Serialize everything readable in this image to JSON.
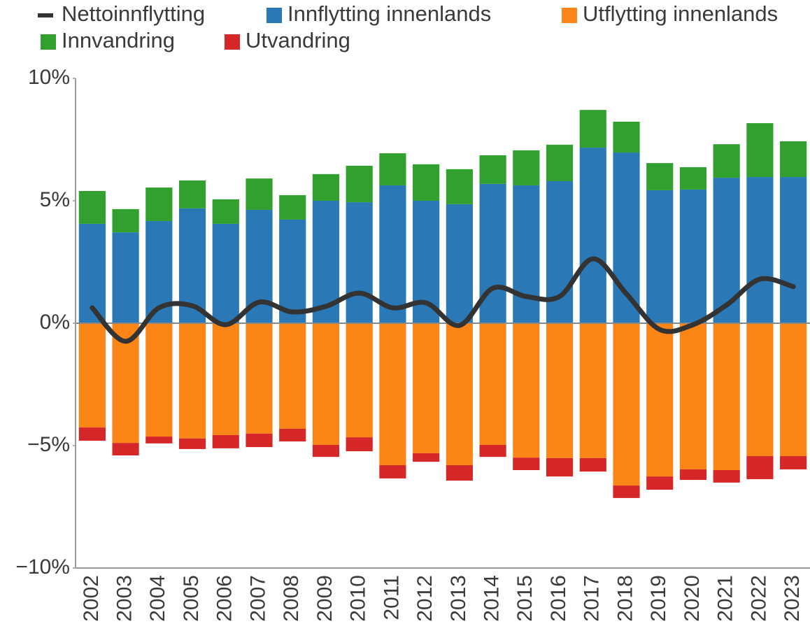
{
  "chart_data": {
    "type": "bar",
    "categories": [
      "2002",
      "2003",
      "2004",
      "2005",
      "2006",
      "2007",
      "2008",
      "2009",
      "2010",
      "2011",
      "2012",
      "2013",
      "2014",
      "2015",
      "2016",
      "2017",
      "2018",
      "2019",
      "2020",
      "2021",
      "2022",
      "2023"
    ],
    "series": [
      {
        "name": "Nettoinnflytting",
        "type": "line",
        "color": "#333333",
        "values": [
          0.63,
          -0.74,
          0.63,
          0.71,
          -0.06,
          0.86,
          0.46,
          0.69,
          1.23,
          0.63,
          0.83,
          -0.09,
          1.43,
          1.09,
          1.09,
          2.63,
          1.2,
          -0.26,
          -0.06,
          0.74,
          1.8,
          1.49
        ]
      },
      {
        "name": "Innflytting innenlands",
        "color": "#2a78b5",
        "values": [
          4.06,
          3.71,
          4.17,
          4.69,
          4.06,
          4.63,
          4.23,
          5.0,
          4.94,
          5.63,
          5.0,
          4.86,
          5.69,
          5.63,
          5.8,
          7.17,
          6.97,
          5.43,
          5.46,
          5.94,
          5.97,
          5.97
        ]
      },
      {
        "name": "Utflytting innenlands",
        "color": "#fb8517",
        "values": [
          -4.26,
          -4.89,
          -4.63,
          -4.71,
          -4.57,
          -4.51,
          -4.31,
          -4.97,
          -4.66,
          -5.8,
          -5.31,
          -5.8,
          -4.97,
          -5.49,
          -5.51,
          -5.51,
          -6.63,
          -6.26,
          -5.97,
          -6.0,
          -5.43,
          -5.43
        ]
      },
      {
        "name": "Innvandring",
        "color": "#31a02f",
        "values": [
          1.34,
          0.95,
          1.37,
          1.14,
          1.0,
          1.28,
          1.0,
          1.09,
          1.49,
          1.31,
          1.49,
          1.43,
          1.17,
          1.43,
          1.49,
          1.54,
          1.26,
          1.11,
          0.91,
          1.37,
          2.2,
          1.46
        ]
      },
      {
        "name": "Utvandring",
        "color": "#d62728",
        "values": [
          -0.54,
          -0.51,
          -0.28,
          -0.43,
          -0.54,
          -0.55,
          -0.52,
          -0.49,
          -0.57,
          -0.54,
          -0.35,
          -0.63,
          -0.49,
          -0.51,
          -0.75,
          -0.55,
          -0.51,
          -0.54,
          -0.43,
          -0.51,
          -0.94,
          -0.54
        ]
      }
    ],
    "ylim": [
      -10,
      10
    ],
    "yticks": [
      {
        "value": -10,
        "label": "−10%"
      },
      {
        "value": -5,
        "label": "−5%"
      },
      {
        "value": 0,
        "label": "0%"
      },
      {
        "value": 5,
        "label": "5%"
      },
      {
        "value": 10,
        "label": "10%"
      }
    ]
  }
}
